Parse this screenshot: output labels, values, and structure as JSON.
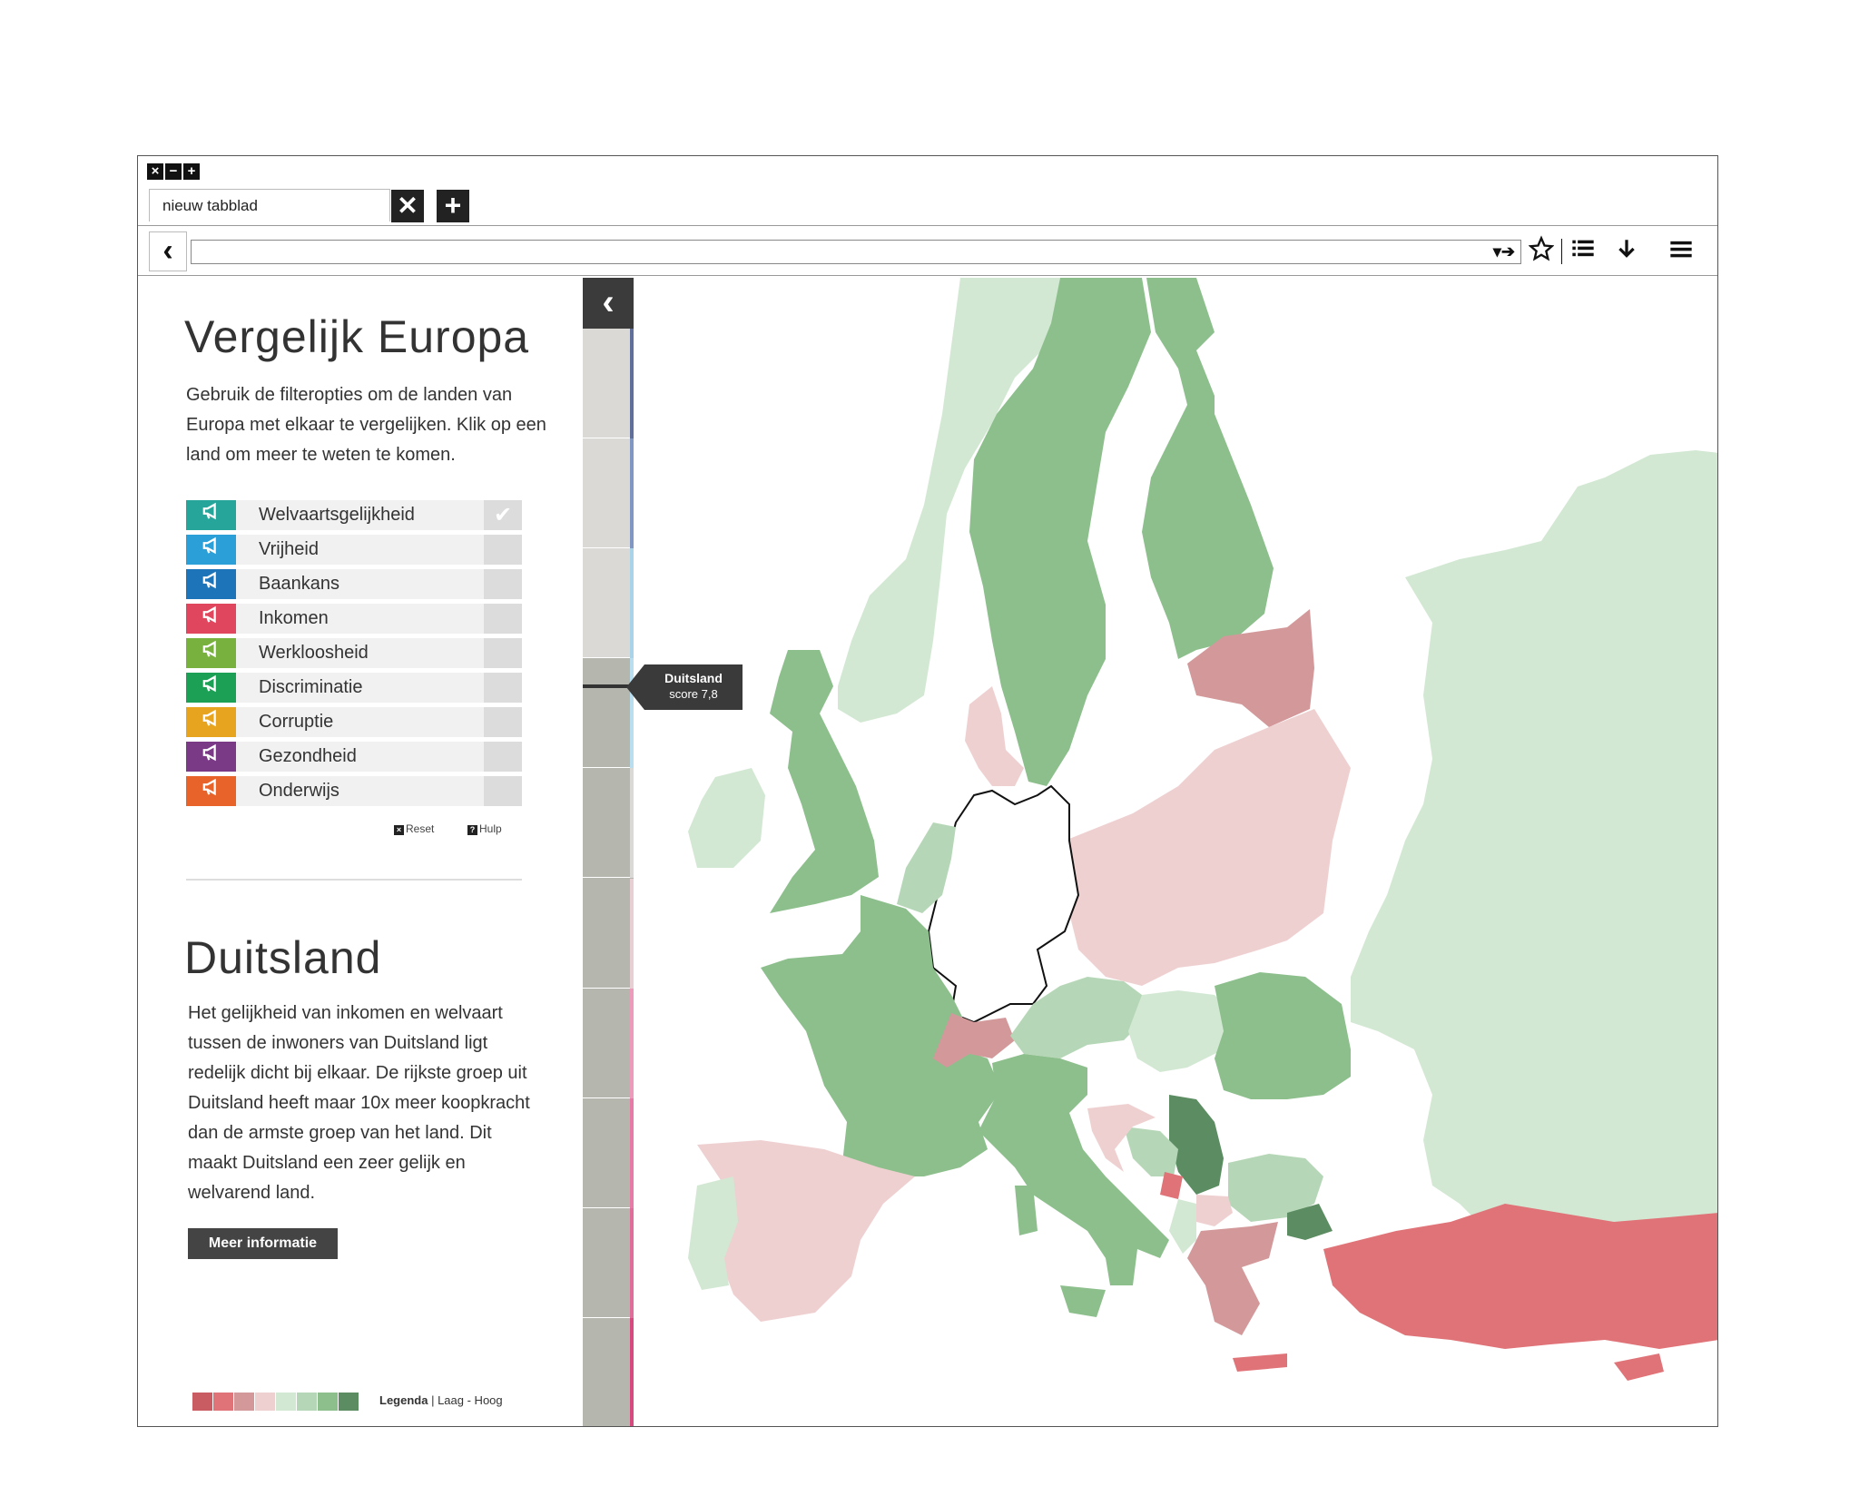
{
  "browser": {
    "window_buttons": [
      "×",
      "−",
      "+"
    ],
    "tab_label": "nieuw tabblad",
    "tab_close": "✕",
    "tab_new": "+",
    "back": "‹",
    "go": "▾➔"
  },
  "panel": {
    "title": "Vergelijk Europa",
    "intro": "Gebruik de filteropties om de landen van Europa met elkaar te vergelijken. Klik op een land om meer te weten te komen.",
    "filters": [
      {
        "label": "Welvaartsgelijkheid",
        "color": "#26a69a",
        "checked": true
      },
      {
        "label": "Vrijheid",
        "color": "#2a9fd8",
        "checked": false
      },
      {
        "label": "Baankans",
        "color": "#1e74b8",
        "checked": false
      },
      {
        "label": "Inkomen",
        "color": "#e0475e",
        "checked": false
      },
      {
        "label": "Werkloosheid",
        "color": "#78b13e",
        "checked": false
      },
      {
        "label": "Discriminatie",
        "color": "#1ca055",
        "checked": false
      },
      {
        "label": "Corruptie",
        "color": "#e7a51f",
        "checked": false
      },
      {
        "label": "Gezondheid",
        "color": "#7a3a86",
        "checked": false
      },
      {
        "label": "Onderwijs",
        "color": "#e8632a",
        "checked": false
      }
    ],
    "reset_label": "Reset",
    "help_label": "Hulp",
    "country_title": "Duitsland",
    "country_text": "Het gelijkheid van inkomen en welvaart tussen de inwoners van Duitsland ligt redelijk dicht bij elkaar. De rijkste groep uit Duitsland heeft maar 10x meer koopkracht dan de armste groep van het land. Dit maakt Duitsland een zeer gelijk en welvarend land.",
    "more_button": "Meer informatie",
    "legend_colors": [
      "#c95c62",
      "#e07378",
      "#d3989a",
      "#efd0d1",
      "#d2e8d3",
      "#b6d7b7",
      "#8dbf8d",
      "#5c8c62"
    ],
    "legend_title": "Legenda",
    "legend_range": "Laag - Hoog"
  },
  "tooltip": {
    "country": "Duitsland",
    "score": "score 7,8"
  },
  "strip_segments": [
    {
      "color": "#dad9d6",
      "bar": "#5f6f9a"
    },
    {
      "color": "#dad9d6",
      "bar": "#7f97c2"
    },
    {
      "color": "#dad9d6",
      "bar": "#a9d3e8"
    },
    {
      "color": "#b5b6ad",
      "bar": "#b8def0"
    },
    {
      "color": "#b5b6ad",
      "bar": "#dad9d6"
    },
    {
      "color": "#b5b6ad",
      "bar": "#e8cfd3"
    },
    {
      "color": "#b5b6ad",
      "bar": "#ee9bbb"
    },
    {
      "color": "#b5b6ad",
      "bar": "#e87aa7"
    },
    {
      "color": "#b5b6ad",
      "bar": "#e16d9a"
    },
    {
      "color": "#b5b6ad",
      "bar": "#d8497f"
    }
  ],
  "map": {
    "highlight_fill": "#ffffff",
    "sea": "#ffffff"
  }
}
